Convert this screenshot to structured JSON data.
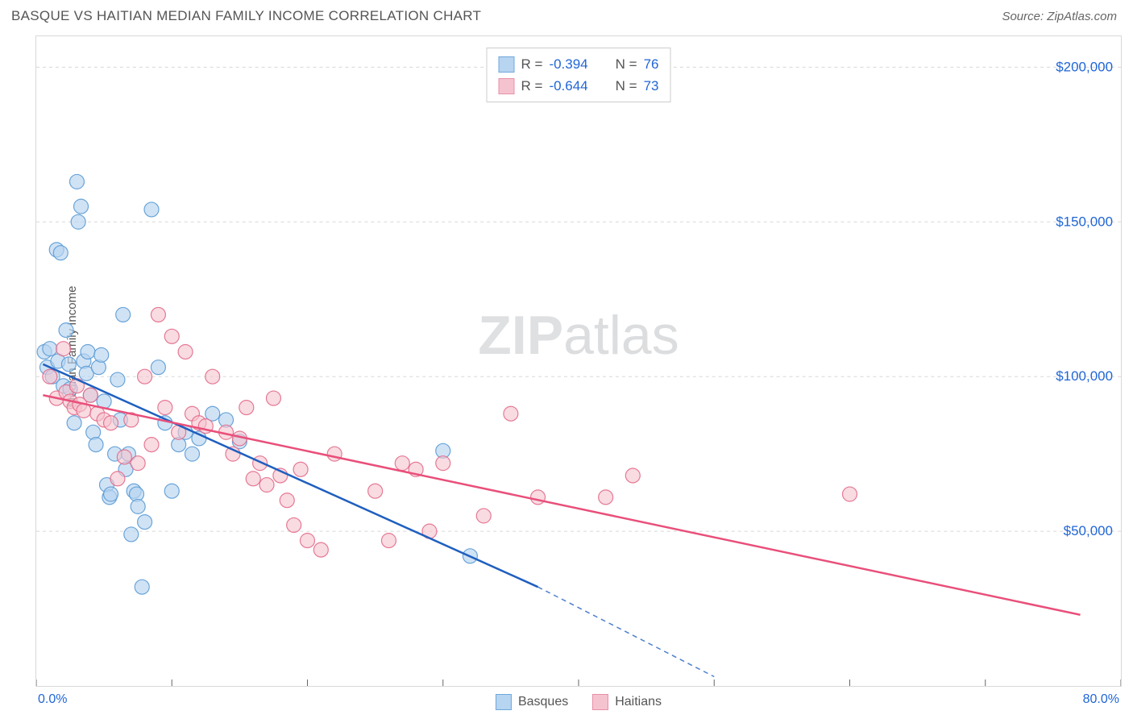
{
  "header": {
    "title": "BASQUE VS HAITIAN MEDIAN FAMILY INCOME CORRELATION CHART",
    "source": "Source: ZipAtlas.com"
  },
  "watermark": {
    "zip": "ZIP",
    "atlas": "atlas"
  },
  "chart": {
    "type": "scatter",
    "ylabel": "Median Family Income",
    "background_color": "#ffffff",
    "grid_color": "#d8d8d8",
    "axis_color": "#666666",
    "xlim": [
      0,
      80
    ],
    "ylim": [
      0,
      210000
    ],
    "x_axis": {
      "min_label": "0.0%",
      "max_label": "80.0%",
      "label_color": "#2166d6",
      "tick_positions_pct": [
        0,
        10,
        20,
        30,
        40,
        50,
        60,
        70,
        80
      ]
    },
    "y_axis": {
      "grid_values": [
        50000,
        100000,
        150000,
        200000
      ],
      "grid_labels": [
        "$50,000",
        "$100,000",
        "$150,000",
        "$200,000"
      ],
      "label_color": "#2166d6"
    },
    "stats": [
      {
        "swatch_fill": "#b7d4f0",
        "swatch_stroke": "#6fa8dc",
        "r": "-0.394",
        "n": "76"
      },
      {
        "swatch_fill": "#f5c3cf",
        "swatch_stroke": "#e890a8",
        "r": "-0.644",
        "n": "73"
      }
    ],
    "legend": [
      {
        "label": "Basques",
        "swatch_fill": "#b7d4f0",
        "swatch_stroke": "#6fa8dc"
      },
      {
        "label": "Haitians",
        "swatch_fill": "#f5c3cf",
        "swatch_stroke": "#e890a8"
      }
    ],
    "series": [
      {
        "name": "Basques",
        "marker_fill": "#b7d4f0",
        "marker_stroke": "#5b9bd5",
        "marker_opacity": 0.65,
        "marker_radius": 9,
        "trend": {
          "color": "#1f5fbf",
          "width": 2.5,
          "x1": 0.5,
          "y1": 104000,
          "x2_solid": 37,
          "y2_solid": 32000,
          "x2_dash": 50,
          "y2_dash": 3000
        },
        "points": [
          [
            0.6,
            108000
          ],
          [
            0.8,
            103000
          ],
          [
            1.0,
            109000
          ],
          [
            1.2,
            100000
          ],
          [
            1.5,
            141000
          ],
          [
            1.6,
            105000
          ],
          [
            1.8,
            140000
          ],
          [
            2.0,
            97000
          ],
          [
            2.2,
            115000
          ],
          [
            2.4,
            104000
          ],
          [
            2.5,
            96000
          ],
          [
            2.8,
            85000
          ],
          [
            3.0,
            163000
          ],
          [
            3.1,
            150000
          ],
          [
            3.3,
            155000
          ],
          [
            3.5,
            105000
          ],
          [
            3.7,
            101000
          ],
          [
            3.8,
            108000
          ],
          [
            4.0,
            94000
          ],
          [
            4.2,
            82000
          ],
          [
            4.4,
            78000
          ],
          [
            4.6,
            103000
          ],
          [
            4.8,
            107000
          ],
          [
            5.0,
            92000
          ],
          [
            5.2,
            65000
          ],
          [
            5.4,
            61000
          ],
          [
            5.5,
            62000
          ],
          [
            5.8,
            75000
          ],
          [
            6.0,
            99000
          ],
          [
            6.2,
            86000
          ],
          [
            6.4,
            120000
          ],
          [
            6.6,
            70000
          ],
          [
            6.8,
            75000
          ],
          [
            7.0,
            49000
          ],
          [
            7.2,
            63000
          ],
          [
            7.4,
            62000
          ],
          [
            7.5,
            58000
          ],
          [
            7.8,
            32000
          ],
          [
            8.0,
            53000
          ],
          [
            8.5,
            154000
          ],
          [
            9.0,
            103000
          ],
          [
            9.5,
            85000
          ],
          [
            10.0,
            63000
          ],
          [
            10.5,
            78000
          ],
          [
            11.0,
            82000
          ],
          [
            11.5,
            75000
          ],
          [
            12.0,
            80000
          ],
          [
            13.0,
            88000
          ],
          [
            14.0,
            86000
          ],
          [
            15.0,
            79000
          ],
          [
            30.0,
            76000
          ],
          [
            32.0,
            42000
          ]
        ]
      },
      {
        "name": "Haitians",
        "marker_fill": "#f5c3cf",
        "marker_stroke": "#e26b8a",
        "marker_opacity": 0.6,
        "marker_radius": 9,
        "trend": {
          "color": "#e94f7a",
          "width": 2.5,
          "x1": 0.5,
          "y1": 94000,
          "x2_solid": 77,
          "y2_solid": 23000
        },
        "points": [
          [
            1.0,
            100000
          ],
          [
            1.5,
            93000
          ],
          [
            2.0,
            109000
          ],
          [
            2.2,
            95000
          ],
          [
            2.5,
            92000
          ],
          [
            2.8,
            90000
          ],
          [
            3.0,
            97000
          ],
          [
            3.2,
            91000
          ],
          [
            3.5,
            89000
          ],
          [
            4.0,
            94000
          ],
          [
            4.5,
            88000
          ],
          [
            5.0,
            86000
          ],
          [
            5.5,
            85000
          ],
          [
            6.0,
            67000
          ],
          [
            6.5,
            74000
          ],
          [
            7.0,
            86000
          ],
          [
            7.5,
            72000
          ],
          [
            8.0,
            100000
          ],
          [
            8.5,
            78000
          ],
          [
            9.0,
            120000
          ],
          [
            9.5,
            90000
          ],
          [
            10.0,
            113000
          ],
          [
            10.5,
            82000
          ],
          [
            11.0,
            108000
          ],
          [
            11.5,
            88000
          ],
          [
            12.0,
            85000
          ],
          [
            12.5,
            84000
          ],
          [
            13.0,
            100000
          ],
          [
            14.0,
            82000
          ],
          [
            14.5,
            75000
          ],
          [
            15.0,
            80000
          ],
          [
            15.5,
            90000
          ],
          [
            16.0,
            67000
          ],
          [
            16.5,
            72000
          ],
          [
            17.0,
            65000
          ],
          [
            17.5,
            93000
          ],
          [
            18.0,
            68000
          ],
          [
            18.5,
            60000
          ],
          [
            19.0,
            52000
          ],
          [
            19.5,
            70000
          ],
          [
            20.0,
            47000
          ],
          [
            21.0,
            44000
          ],
          [
            22.0,
            75000
          ],
          [
            25.0,
            63000
          ],
          [
            26.0,
            47000
          ],
          [
            27.0,
            72000
          ],
          [
            28.0,
            70000
          ],
          [
            29.0,
            50000
          ],
          [
            30.0,
            72000
          ],
          [
            33.0,
            55000
          ],
          [
            35.0,
            88000
          ],
          [
            37.0,
            61000
          ],
          [
            42.0,
            61000
          ],
          [
            44.0,
            68000
          ],
          [
            60.0,
            62000
          ]
        ]
      }
    ]
  }
}
